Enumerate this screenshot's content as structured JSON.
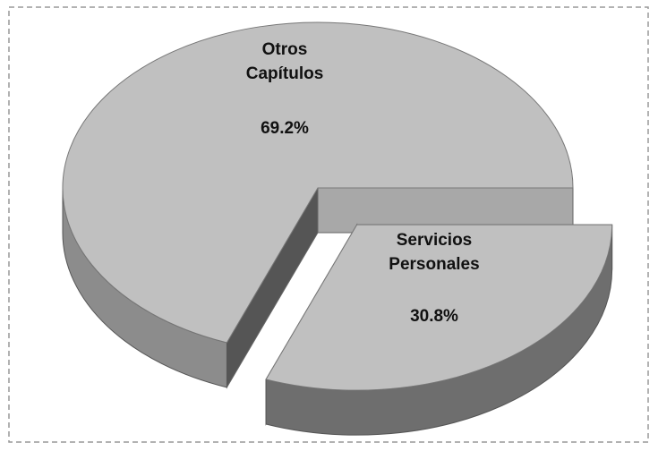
{
  "chart_data": {
    "type": "pie",
    "categories": [
      "Servicios Personales",
      "Otros Capítulos"
    ],
    "values": [
      30.8,
      69.2
    ],
    "value_labels": [
      "30.8%",
      "69.2%"
    ],
    "color": "#c0c0c0"
  }
}
